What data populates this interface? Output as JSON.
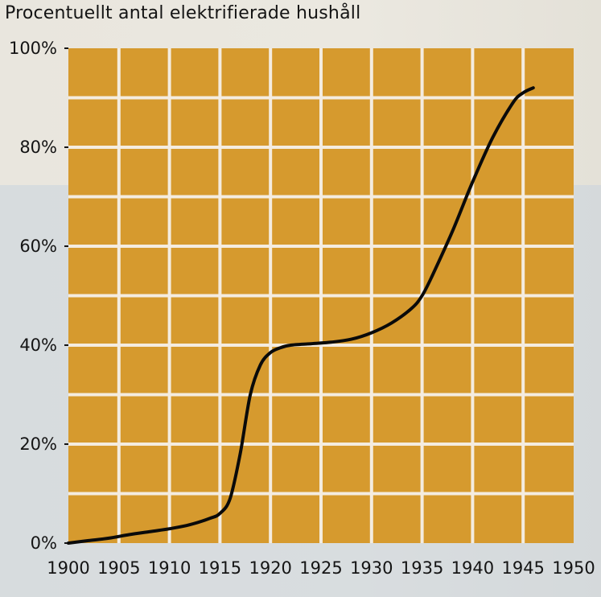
{
  "chart_data": {
    "type": "line",
    "title": "Procentuellt antal elektrifierade hushåll",
    "xlabel": "",
    "ylabel": "",
    "xlim": [
      1900,
      1950
    ],
    "ylim": [
      0,
      100
    ],
    "x_ticks": [
      "1900",
      "1905",
      "1910",
      "1915",
      "1920",
      "1925",
      "1930",
      "1935",
      "1940",
      "1945",
      "1950"
    ],
    "y_ticks": [
      "0%",
      "20%",
      "40%",
      "60%",
      "80%",
      "100%"
    ],
    "grid": true,
    "legend": "none",
    "series": [
      {
        "x": [
          1900,
          1902,
          1904,
          1906,
          1908,
          1910,
          1912,
          1914,
          1915,
          1916,
          1917,
          1918,
          1919,
          1920,
          1921,
          1922,
          1924,
          1926,
          1928,
          1930,
          1932,
          1934,
          1935,
          1936,
          1938,
          1940,
          1942,
          1944,
          1945,
          1946
        ],
        "y": [
          0,
          0.5,
          1,
          1.7,
          2.3,
          2.9,
          3.7,
          5,
          6,
          9,
          18,
          30,
          36,
          38.5,
          39.5,
          40,
          40.3,
          40.6,
          41.2,
          42.5,
          44.5,
          47.5,
          50,
          54,
          63,
          73,
          82,
          89,
          91,
          92
        ]
      }
    ],
    "colors": {
      "plot_fill": "#d69a2e",
      "grid": "#f4ece0",
      "line": "#0a0a0a",
      "text": "#141414"
    }
  }
}
